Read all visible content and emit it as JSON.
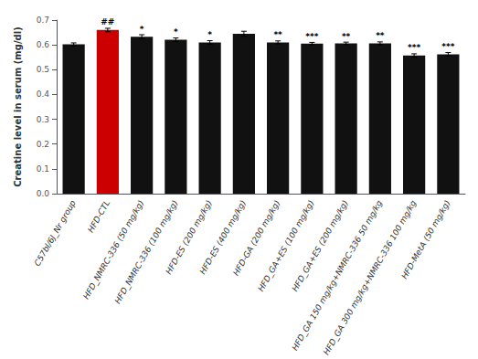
{
  "chart_data": {
    "type": "bar",
    "ylabel": "Creatine level in serum (mg/dl)",
    "categories": [
      "C57bl/6J_Nr group",
      "HFD-CTL",
      "HFD_NMRC-336 (50 mg/kg)",
      "HFD_NMRC-336 (100 mg/kg)",
      "HFD-ES (200 mg/kg)",
      "HFD-ES (400 mg/kg)",
      "HFD-GA (200 mg/kg)",
      "HFD_GA+ES (100 mg/kg)",
      "HFD_GA+ES (200 mg/kg)",
      "HFD_GA 150 mg/kg+NMRC-336 50 mg/kg",
      "HFD_GA 300 mg/kg+NMRC-336 100 mg/kg",
      "HFD-MetA (50 mg/kg)"
    ],
    "values": [
      0.602,
      0.66,
      0.633,
      0.621,
      0.61,
      0.645,
      0.61,
      0.605,
      0.606,
      0.606,
      0.557,
      0.562
    ],
    "errors": [
      0.006,
      0.007,
      0.008,
      0.007,
      0.007,
      0.01,
      0.006,
      0.005,
      0.005,
      0.006,
      0.007,
      0.007
    ],
    "colors": [
      "#111111",
      "#cc0000",
      "#111111",
      "#111111",
      "#111111",
      "#111111",
      "#111111",
      "#111111",
      "#111111",
      "#111111",
      "#111111",
      "#111111"
    ],
    "annotations": [
      {
        "category": "HFD-CTL",
        "text": "##"
      },
      {
        "category": "HFD_NMRC-336 (50 mg/kg)",
        "text": "*"
      },
      {
        "category": "HFD_NMRC-336 (100 mg/kg)",
        "text": "*"
      },
      {
        "category": "HFD-ES (200 mg/kg)",
        "text": "*"
      },
      {
        "category": "HFD-GA (200 mg/kg)",
        "text": "**"
      },
      {
        "category": "HFD_GA+ES (100 mg/kg)",
        "text": "***"
      },
      {
        "category": "HFD_GA+ES (200 mg/kg)",
        "text": "**"
      },
      {
        "category": "HFD_GA 150 mg/kg+NMRC-336 50 mg/kg",
        "text": "**"
      },
      {
        "category": "HFD_GA 300 mg/kg+NMRC-336 100 mg/kg",
        "text": "***"
      },
      {
        "category": "HFD-MetA (50 mg/kg)",
        "text": "***"
      }
    ],
    "ylim": [
      0.0,
      0.7
    ],
    "yticks": [
      {
        "value": 0.0,
        "label": "0.0"
      },
      0.1,
      0.2,
      0.3,
      0.4,
      0.5,
      0.6,
      0.7
    ],
    "grid": false
  }
}
